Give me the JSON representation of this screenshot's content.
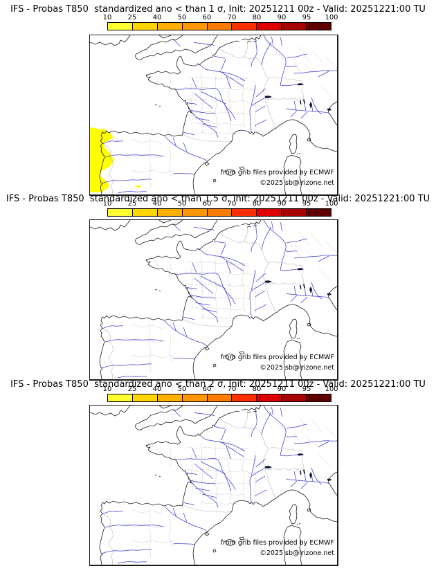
{
  "panels": [
    {
      "title": "IFS - Probas T850  standardized ano < than 1 σ, Init: 20251211 00z - Valid: 20251221:00 TU",
      "sigma_threshold": "1",
      "shaded_region": {
        "color": "#FFFF00",
        "probability_range": "10-25",
        "location": "west Iberian coast"
      }
    },
    {
      "title": "IFS - Probas T850  standardized ano < than 1.5 σ, Init: 20251211 00z - Valid: 20251221:00 TU",
      "sigma_threshold": "1.5",
      "shaded_region": null
    },
    {
      "title": "IFS - Probas T850  standardized ano < than 2 σ, Init: 20251211 00z - Valid: 20251221:00 TU",
      "sigma_threshold": "2",
      "shaded_region": null
    }
  ],
  "colorbar": {
    "ticks": [
      "10",
      "25",
      "40",
      "50",
      "60",
      "70",
      "80",
      "90",
      "95",
      "100"
    ],
    "colors": [
      "#FFFF33",
      "#FFD500",
      "#FFB000",
      "#FF9800",
      "#FF7C00",
      "#FF3000",
      "#DE0000",
      "#A60000",
      "#5E0000"
    ]
  },
  "map": {
    "credit_line1": "from grib files provided by ECMWF",
    "credit_line2": "©2025 sb@irizone.net",
    "coast_color": "#1a1a1a",
    "river_color": "#3c3cd0",
    "border_color": "#b5b5b5"
  }
}
